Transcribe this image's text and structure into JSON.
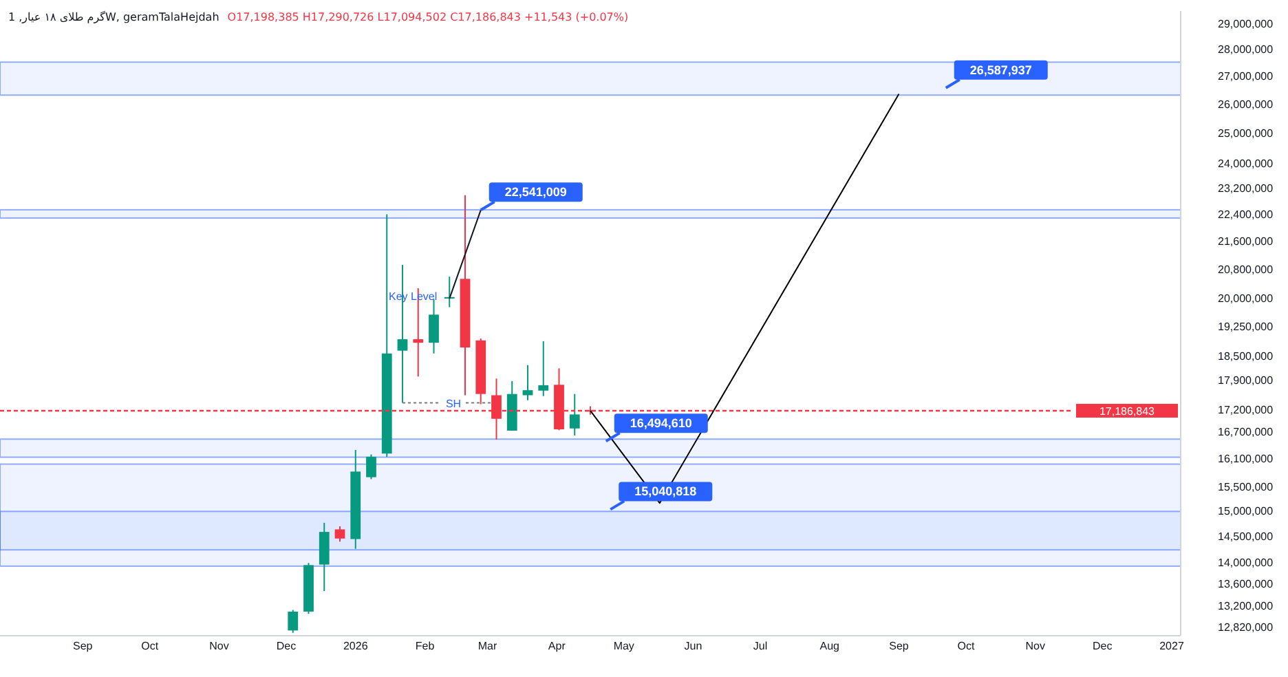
{
  "chart_data": {
    "type": "candlestick",
    "title": "گرم طلای ۱۸ عیار, 1W, geramTalaHejdah",
    "subtitle": "O17,198,385 H17,290,726 L17,094,502 C17,186,843 +11,543 (+0.07%)",
    "x": [
      "2025-12-04",
      "2025-12-11",
      "2025-12-18",
      "2025-12-25",
      "2026-01-01",
      "2026-01-08",
      "2026-01-15",
      "2026-01-22",
      "2026-01-29",
      "2026-02-05",
      "2026-02-12",
      "2026-02-19",
      "2026-02-26",
      "2026-03-05",
      "2026-03-12",
      "2026-03-19",
      "2026-03-26",
      "2026-04-02",
      "2026-04-09",
      "2026-04-16"
    ],
    "ohlc": [
      [
        12770000,
        13130000,
        12730000,
        13100000
      ],
      [
        13100000,
        13990000,
        13060000,
        13950000
      ],
      [
        13960000,
        14770000,
        13470000,
        14590000
      ],
      [
        14640000,
        14700000,
        14400000,
        14460000
      ],
      [
        14450000,
        16300000,
        14260000,
        15830000
      ],
      [
        15710000,
        16200000,
        15670000,
        16150000
      ],
      [
        16220000,
        22410000,
        16150000,
        18570000
      ],
      [
        18640000,
        20930000,
        17370000,
        18930000
      ],
      [
        18930000,
        20280000,
        18000000,
        18840000
      ],
      [
        18840000,
        19990000,
        18570000,
        19570000
      ],
      [
        20000000,
        20600000,
        19770000,
        20040000
      ],
      [
        20540000,
        23000000,
        17550000,
        18720000
      ],
      [
        18900000,
        18950000,
        17340000,
        17580000
      ],
      [
        17550000,
        17950000,
        16530000,
        17000000
      ],
      [
        16730000,
        17890000,
        16730000,
        17580000
      ],
      [
        17550000,
        18280000,
        17430000,
        17670000
      ],
      [
        17660000,
        18880000,
        17530000,
        17790000
      ],
      [
        17800000,
        18200000,
        16740000,
        16760000
      ],
      [
        16780000,
        17580000,
        16620000,
        17100000
      ],
      [
        17198385,
        17290726,
        17094502,
        17186843
      ]
    ],
    "colors": [
      "#089981",
      "#089981",
      "#089981",
      "#f23645",
      "#089981",
      "#089981",
      "#089981",
      "#089981",
      "#f23645",
      "#089981",
      "#089981",
      "#f23645",
      "#f23645",
      "#f23645",
      "#089981",
      "#089981",
      "#089981",
      "#f23645",
      "#089981",
      "#f23645"
    ],
    "series": [
      {
        "type": "line",
        "color": "#000000",
        "x": [
          "2026-04-16",
          "2026-05-17",
          "2026-09-01"
        ],
        "values": [
          17186843,
          15170000,
          26370000
        ]
      }
    ],
    "log": true,
    "xlim": [
      "2025-07-26",
      "2027-01-05"
    ],
    "xticks": [
      {
        "value": "2025-09-01",
        "label": "Sep"
      },
      {
        "value": "2025-10-01",
        "label": "Oct"
      },
      {
        "value": "2025-11-01",
        "label": "Nov"
      },
      {
        "value": "2025-12-01",
        "label": "Dec"
      },
      {
        "value": "2026-01-01",
        "label": "2026"
      },
      {
        "value": "2026-02-01",
        "label": "Feb"
      },
      {
        "value": "2026-03-01",
        "label": "Mar"
      },
      {
        "value": "2026-04-01",
        "label": "Apr"
      },
      {
        "value": "2026-05-01",
        "label": "May"
      },
      {
        "value": "2026-06-01",
        "label": "Jun"
      },
      {
        "value": "2026-07-01",
        "label": "Jul"
      },
      {
        "value": "2026-08-01",
        "label": "Aug"
      },
      {
        "value": "2026-09-01",
        "label": "Sep"
      },
      {
        "value": "2026-10-01",
        "label": "Oct"
      },
      {
        "value": "2026-11-01",
        "label": "Nov"
      },
      {
        "value": "2026-12-01",
        "label": "Dec"
      },
      {
        "value": "2027-01-01",
        "label": "2027"
      }
    ],
    "ylim": [
      12680000,
      29500000
    ],
    "yticks": [
      {
        "value": 12820000,
        "label": "12,820,000"
      },
      {
        "value": 13200000,
        "label": "13,200,000"
      },
      {
        "value": 13600000,
        "label": "13,600,000"
      },
      {
        "value": 14000000,
        "label": "14,000,000"
      },
      {
        "value": 14500000,
        "label": "14,500,000"
      },
      {
        "value": 15000000,
        "label": "15,000,000"
      },
      {
        "value": 15500000,
        "label": "15,500,000"
      },
      {
        "value": 16100000,
        "label": "16,100,000"
      },
      {
        "value": 16700000,
        "label": "16,700,000"
      },
      {
        "value": 17200000,
        "label": "17,200,000"
      },
      {
        "value": 17900000,
        "label": "17,900,000"
      },
      {
        "value": 18500000,
        "label": "18,500,000"
      },
      {
        "value": 19250000,
        "label": "19,250,000"
      },
      {
        "value": 20000000,
        "label": "20,000,000"
      },
      {
        "value": 20800000,
        "label": "20,800,000"
      },
      {
        "value": 21600000,
        "label": "21,600,000"
      },
      {
        "value": 22400000,
        "label": "22,400,000"
      },
      {
        "value": 23200000,
        "label": "23,200,000"
      },
      {
        "value": 24000000,
        "label": "24,000,000"
      },
      {
        "value": 25000000,
        "label": "25,000,000"
      },
      {
        "value": 26000000,
        "label": "26,000,000"
      },
      {
        "value": 27000000,
        "label": "27,000,000"
      },
      {
        "value": 28000000,
        "label": "28,000,000"
      },
      {
        "value": 29000000,
        "label": "29,000,000"
      }
    ],
    "ref_lines": [
      {
        "axis": "y",
        "value": 17186843,
        "label": "17,186,843",
        "color": "#f23645",
        "line_style": "dotted"
      }
    ],
    "bands": [
      {
        "axis": "y",
        "from": 26330000,
        "to": 27530000,
        "color": "#2962ff"
      },
      {
        "axis": "y",
        "from": 22300000,
        "to": 22550000,
        "color": "#2962ff"
      },
      {
        "axis": "y",
        "from": 16140000,
        "to": 16540000,
        "color": "#2962ff"
      },
      {
        "axis": "y",
        "from": 13930000,
        "to": 15990000,
        "color": "#2962ff"
      },
      {
        "axis": "y",
        "from": 14240000,
        "to": 15000000,
        "color": "#2962ff"
      }
    ],
    "annotations": [
      {
        "text": "Key Level",
        "x": "2026-02-12",
        "y": 20000000
      },
      {
        "text": "SH",
        "x": "2026-01-22",
        "y": 17370000
      },
      {
        "text": "22,541,009",
        "x": "2026-02-26",
        "y": 22541009
      },
      {
        "text": "16,494,610",
        "x": "2026-04-23",
        "y": 16494610
      },
      {
        "text": "15,040,818",
        "x": "2026-04-25",
        "y": 15040818
      },
      {
        "text": "26,587,937",
        "x": "2026-09-22",
        "y": 26587937
      }
    ],
    "grid": false
  }
}
